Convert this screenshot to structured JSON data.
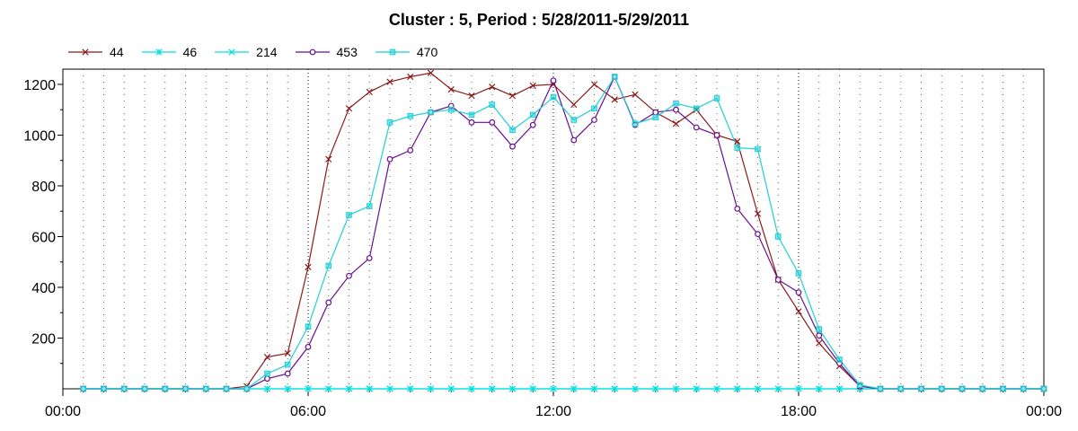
{
  "chart_data": {
    "type": "line",
    "title": "Cluster : 5, Period : 5/28/2011-5/29/2011",
    "xlabel": "",
    "ylabel": "",
    "x_range_hours": [
      0,
      24
    ],
    "ylim": [
      0,
      1260
    ],
    "y_ticks": [
      200,
      400,
      600,
      800,
      1000,
      1200
    ],
    "x_ticks": [
      {
        "hour": 0,
        "label": "00:00"
      },
      {
        "hour": 6,
        "label": "06:00"
      },
      {
        "hour": 12,
        "label": "12:00"
      },
      {
        "hour": 18,
        "label": "18:00"
      },
      {
        "hour": 24,
        "label": "00:00"
      }
    ],
    "grid": "dotted vertical every 30 min",
    "legend_position": "top-left",
    "x_hours": [
      0.5,
      1.0,
      1.5,
      2.0,
      2.5,
      3.0,
      3.5,
      4.0,
      4.5,
      5.0,
      5.5,
      6.0,
      6.5,
      7.0,
      7.5,
      8.0,
      8.5,
      9.0,
      9.5,
      10.0,
      10.5,
      11.0,
      11.5,
      12.0,
      12.5,
      13.0,
      13.5,
      14.0,
      14.5,
      15.0,
      15.5,
      16.0,
      16.5,
      17.0,
      17.5,
      18.0,
      18.5,
      19.0,
      19.5,
      20.0,
      20.5,
      21.0,
      21.5,
      22.0,
      22.5,
      23.0,
      23.5,
      24.0
    ],
    "series": [
      {
        "name": "44",
        "color": "#8b1a1a",
        "marker": "x",
        "values": [
          0,
          0,
          0,
          0,
          0,
          0,
          0,
          0,
          10,
          125,
          140,
          480,
          905,
          1105,
          1170,
          1210,
          1230,
          1245,
          1180,
          1155,
          1190,
          1155,
          1195,
          1200,
          1120,
          1200,
          1140,
          1160,
          1090,
          1045,
          1100,
          1000,
          975,
          690,
          430,
          305,
          180,
          90,
          10,
          0,
          0,
          0,
          0,
          0,
          0,
          0,
          0,
          0
        ]
      },
      {
        "name": "46",
        "color": "#00e0e0",
        "marker": "asterisk",
        "values": [
          0,
          0,
          0,
          0,
          0,
          0,
          0,
          0,
          0,
          0,
          0,
          0,
          0,
          0,
          0,
          0,
          0,
          0,
          0,
          0,
          0,
          0,
          0,
          0,
          0,
          0,
          0,
          0,
          0,
          0,
          0,
          0,
          0,
          0,
          0,
          0,
          0,
          0,
          0,
          0,
          0,
          0,
          0,
          0,
          0,
          0,
          0,
          0
        ]
      },
      {
        "name": "214",
        "color": "#00e0e0",
        "marker": "x",
        "values": [
          0,
          0,
          0,
          0,
          0,
          0,
          0,
          0,
          0,
          0,
          0,
          0,
          0,
          0,
          0,
          0,
          0,
          0,
          0,
          0,
          0,
          0,
          0,
          0,
          0,
          0,
          0,
          0,
          0,
          0,
          0,
          0,
          0,
          0,
          0,
          0,
          0,
          0,
          0,
          0,
          0,
          0,
          0,
          0,
          0,
          0,
          0,
          0
        ]
      },
      {
        "name": "453",
        "color": "#6a0d91",
        "marker": "circle",
        "values": [
          0,
          0,
          0,
          0,
          0,
          0,
          0,
          0,
          0,
          40,
          60,
          165,
          340,
          445,
          515,
          905,
          940,
          1090,
          1115,
          1050,
          1050,
          955,
          1040,
          1215,
          980,
          1060,
          1230,
          1040,
          1090,
          1100,
          1030,
          1000,
          710,
          610,
          430,
          380,
          210,
          100,
          10,
          0,
          0,
          0,
          0,
          0,
          0,
          0,
          0,
          0
        ]
      },
      {
        "name": "470",
        "color": "#1ecfd6",
        "marker": "square",
        "values": [
          0,
          0,
          0,
          0,
          0,
          0,
          0,
          0,
          0,
          60,
          95,
          245,
          485,
          685,
          720,
          1050,
          1075,
          1090,
          1100,
          1080,
          1120,
          1020,
          1080,
          1150,
          1060,
          1105,
          1230,
          1045,
          1070,
          1125,
          1105,
          1145,
          950,
          945,
          600,
          455,
          235,
          115,
          15,
          0,
          0,
          0,
          0,
          0,
          0,
          0,
          0,
          0
        ]
      }
    ]
  }
}
